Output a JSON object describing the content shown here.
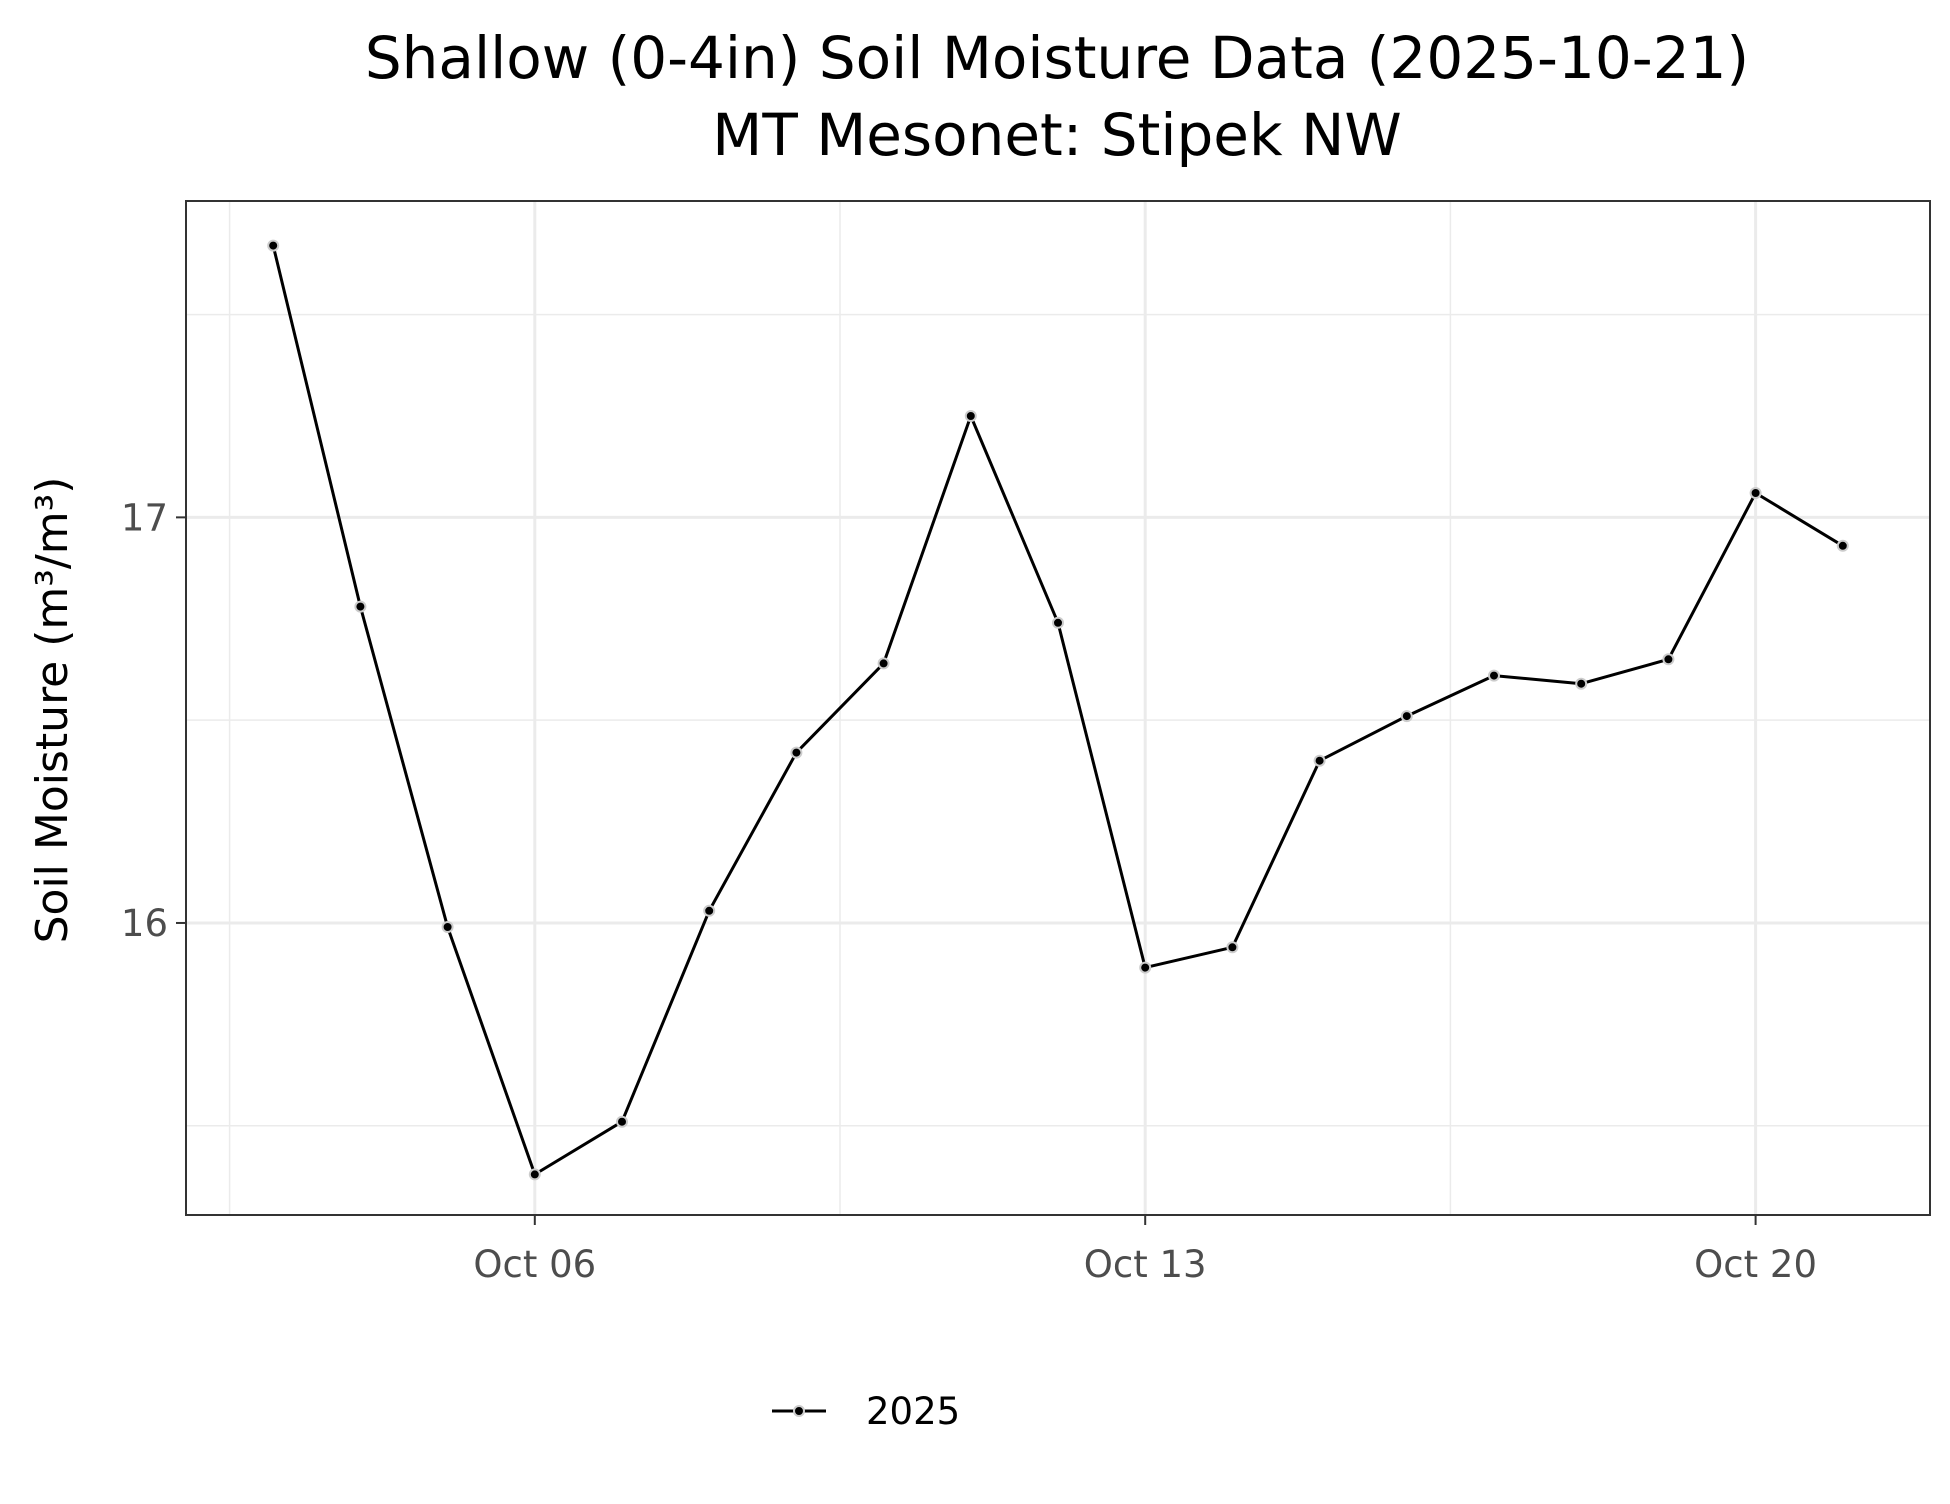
{
  "chart_data": {
    "type": "line",
    "title": "Shallow (0-4in) Soil Moisture Data (2025-10-21)",
    "subtitle": "MT Mesonet: Stipek NW",
    "xlabel": "",
    "ylabel": "Soil Moisture (m³/m³)",
    "x_tick_labels": [
      "Oct 06",
      "Oct 13",
      "Oct 20"
    ],
    "x_ticks": [
      "2025-10-06",
      "2025-10-13",
      "2025-10-20"
    ],
    "y_ticks": [
      16,
      17
    ],
    "y_tick_labels": [
      "16",
      "17"
    ],
    "xlim": [
      "2025-10-02",
      "2025-10-22"
    ],
    "ylim": [
      15.28,
      17.78
    ],
    "grid": true,
    "legend": "bottom",
    "series": [
      {
        "name": "2025",
        "color": "#000000",
        "x": [
          "2025-10-03",
          "2025-10-04",
          "2025-10-05",
          "2025-10-06",
          "2025-10-07",
          "2025-10-08",
          "2025-10-09",
          "2025-10-10",
          "2025-10-11",
          "2025-10-12",
          "2025-10-13",
          "2025-10-14",
          "2025-10-15",
          "2025-10-16",
          "2025-10-17",
          "2025-10-18",
          "2025-10-19",
          "2025-10-20",
          "2025-10-21"
        ],
        "values": [
          17.67,
          16.78,
          15.99,
          15.38,
          15.51,
          16.03,
          16.42,
          16.64,
          17.25,
          16.74,
          15.89,
          15.94,
          16.4,
          16.51,
          16.61,
          16.59,
          16.65,
          17.06,
          16.93
        ]
      }
    ]
  }
}
